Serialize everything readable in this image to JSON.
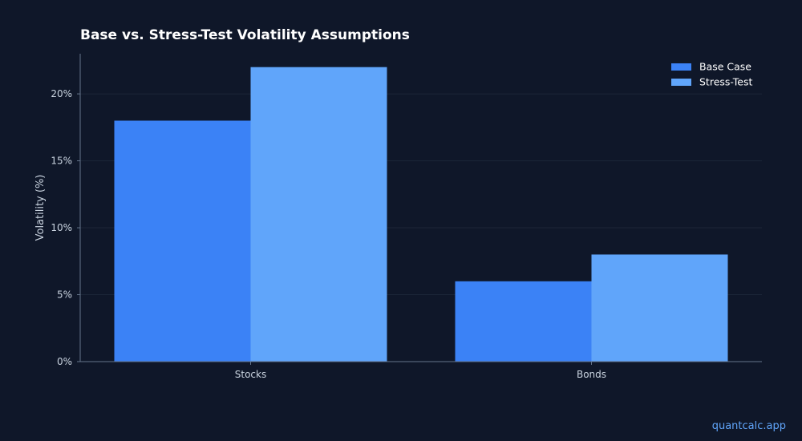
{
  "chart_data": {
    "type": "bar",
    "title": "Base vs. Stress-Test Volatility Assumptions",
    "xlabel": "",
    "ylabel": "Volatility (%)",
    "categories": [
      "Stocks",
      "Bonds"
    ],
    "series": [
      {
        "name": "Base Case",
        "values": [
          18,
          6
        ],
        "color": "#3b82f6"
      },
      {
        "name": "Stress-Test",
        "values": [
          22,
          8
        ],
        "color": "#60a5fa"
      }
    ],
    "ylim": [
      0,
      23
    ],
    "yticks": [
      0,
      5,
      10,
      15,
      20
    ],
    "ytick_labels": [
      "0%",
      "5%",
      "10%",
      "15%",
      "20%"
    ],
    "grid": true,
    "legend_position": "top-right"
  },
  "footer": {
    "watermark": "quantcalc.app"
  },
  "colors": {
    "background": "#0f1729",
    "grid": "#1c2638",
    "axis": "#64748b",
    "accent": "#60a5fa"
  }
}
